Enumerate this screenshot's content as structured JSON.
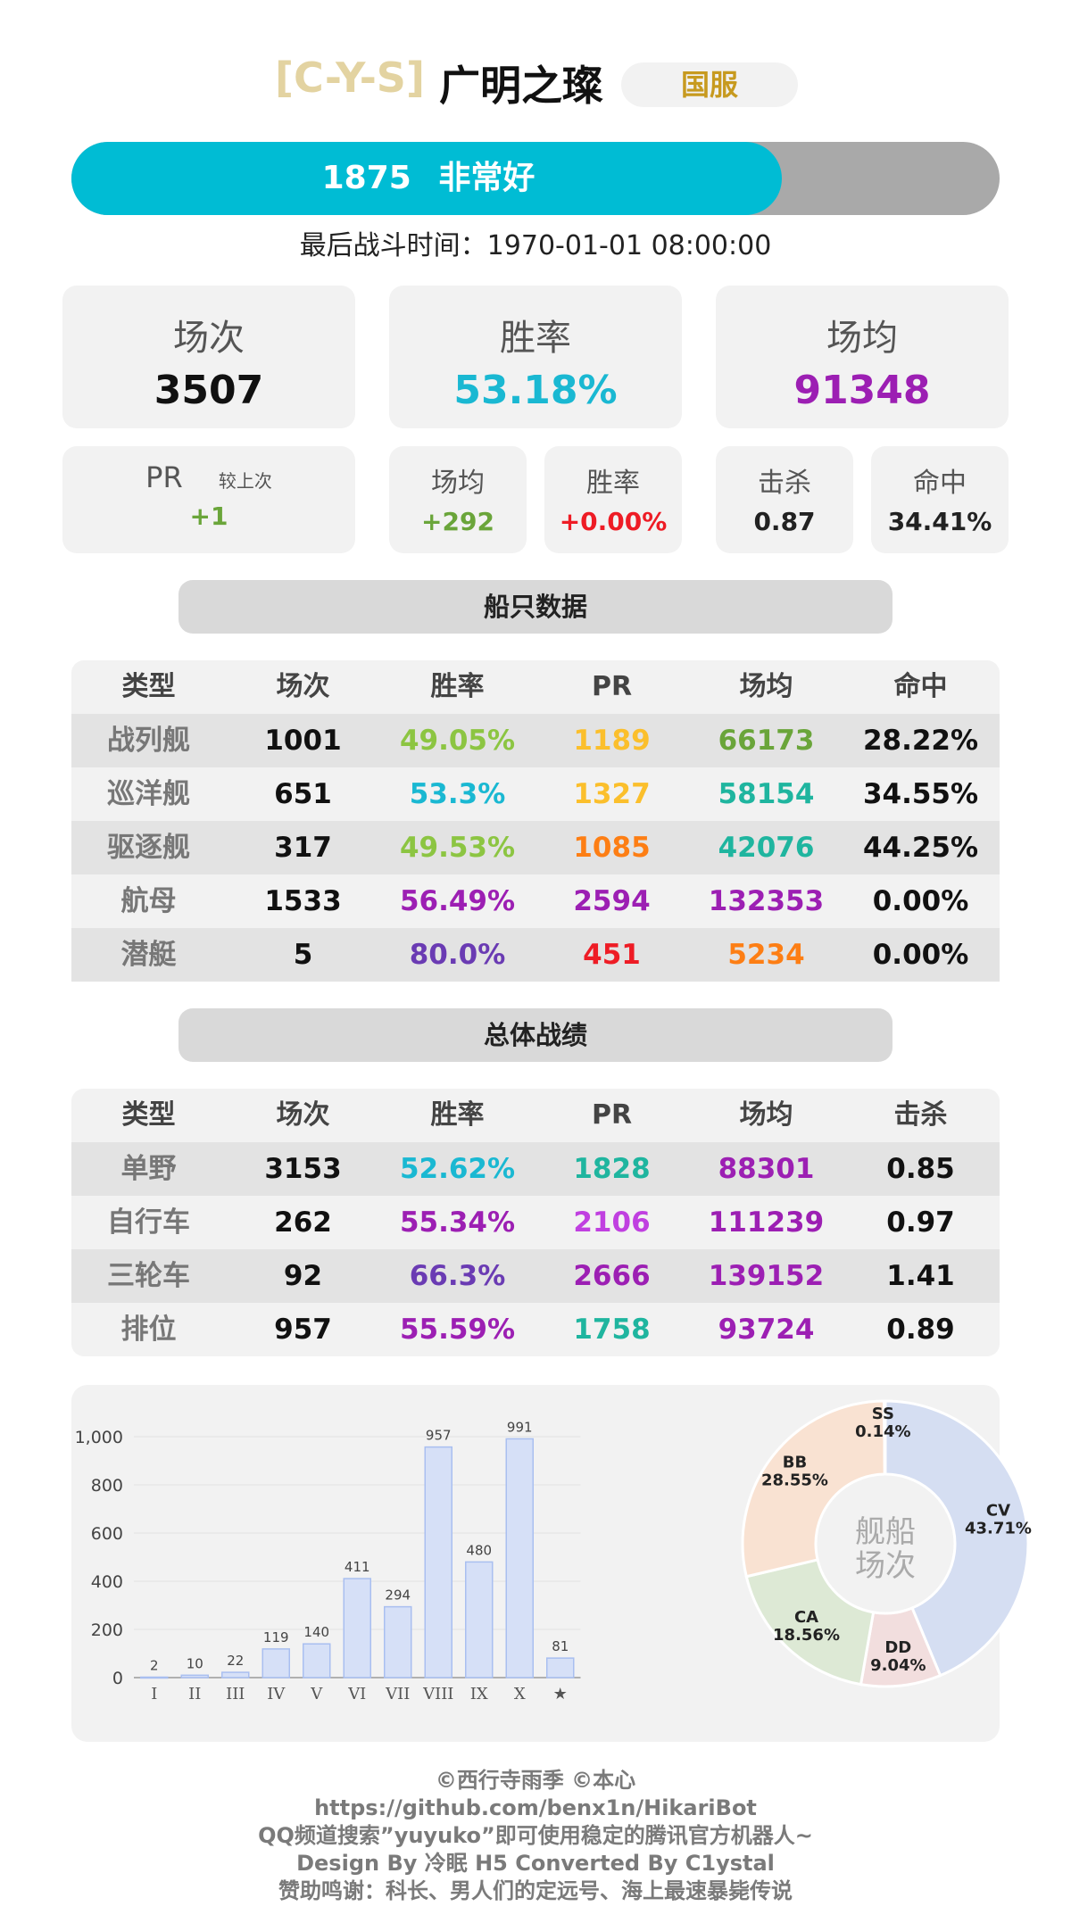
{
  "header": {
    "clan": "[C-Y-S]",
    "player": "广明之璨",
    "server": "国服"
  },
  "pr_bar": {
    "pr": "1875",
    "rating": "非常好",
    "fill_fraction": 0.765,
    "fill_color": "#00bcd4"
  },
  "last_battle": "最后战斗时间：1970-01-01 08:00:00",
  "summary": [
    {
      "label": "场次",
      "value": "3507",
      "color": "#111111"
    },
    {
      "label": "胜率",
      "value": "53.18%",
      "color": "#1ab8d2"
    },
    {
      "label": "场均",
      "value": "91348",
      "color": "#9c1fb3"
    }
  ],
  "pr_change": {
    "label": "PR",
    "sublabel": "较上次",
    "value": "+1",
    "color": "#6aa53a"
  },
  "changes": [
    {
      "label": "场均",
      "value": "+292",
      "color": "#6aa53a"
    },
    {
      "label": "胜率",
      "value": "+0.00%",
      "color": "#ee1c25"
    }
  ],
  "extras": [
    {
      "label": "击杀",
      "value": "0.87",
      "color": "#111111"
    },
    {
      "label": "命中",
      "value": "34.41%",
      "color": "#111111"
    }
  ],
  "ship_section_title": "船只数据",
  "ship_table": {
    "headers": [
      "类型",
      "场次",
      "胜率",
      "PR",
      "场均",
      "命中"
    ],
    "rows": [
      {
        "cells": [
          "战列舰",
          "1001",
          "49.05%",
          "1189",
          "66173",
          "28.22%"
        ],
        "colors": [
          "#777777",
          "#111111",
          "#8cc542",
          "#fbbf2c",
          "#6aa53a",
          "#111111"
        ]
      },
      {
        "cells": [
          "巡洋舰",
          "651",
          "53.3%",
          "1327",
          "58154",
          "34.55%"
        ],
        "colors": [
          "#777777",
          "#111111",
          "#1ab8d2",
          "#fbbf2c",
          "#1fb59f",
          "#111111"
        ]
      },
      {
        "cells": [
          "驱逐舰",
          "317",
          "49.53%",
          "1085",
          "42076",
          "44.25%"
        ],
        "colors": [
          "#777777",
          "#111111",
          "#8cc542",
          "#fd7e14",
          "#1fb59f",
          "#111111"
        ]
      },
      {
        "cells": [
          "航母",
          "1533",
          "56.49%",
          "2594",
          "132353",
          "0.00%"
        ],
        "colors": [
          "#777777",
          "#111111",
          "#9c1fb3",
          "#9c1fb3",
          "#9c1fb3",
          "#111111"
        ]
      },
      {
        "cells": [
          "潜艇",
          "5",
          "80.0%",
          "451",
          "5234",
          "0.00%"
        ],
        "colors": [
          "#777777",
          "#111111",
          "#6a3bb3",
          "#ee1c25",
          "#fd7e14",
          "#111111"
        ]
      }
    ]
  },
  "overall_section_title": "总体战绩",
  "overall_table": {
    "headers": [
      "类型",
      "场次",
      "胜率",
      "PR",
      "场均",
      "击杀"
    ],
    "rows": [
      {
        "cells": [
          "单野",
          "3153",
          "52.62%",
          "1828",
          "88301",
          "0.85"
        ],
        "colors": [
          "#777777",
          "#111111",
          "#1ab8d2",
          "#1fb59f",
          "#9c1fb3",
          "#111111"
        ]
      },
      {
        "cells": [
          "自行车",
          "262",
          "55.34%",
          "2106",
          "111239",
          "0.97"
        ],
        "colors": [
          "#777777",
          "#111111",
          "#9c1fb3",
          "#c040e0",
          "#9c1fb3",
          "#111111"
        ]
      },
      {
        "cells": [
          "三轮车",
          "92",
          "66.3%",
          "2666",
          "139152",
          "1.41"
        ],
        "colors": [
          "#777777",
          "#111111",
          "#6a3bb3",
          "#9c1fb3",
          "#9c1fb3",
          "#111111"
        ]
      },
      {
        "cells": [
          "排位",
          "957",
          "55.59%",
          "1758",
          "93724",
          "0.89"
        ],
        "colors": [
          "#777777",
          "#111111",
          "#9c1fb3",
          "#1fb59f",
          "#9c1fb3",
          "#111111"
        ]
      }
    ]
  },
  "chart_data": [
    {
      "type": "bar",
      "categories": [
        "I",
        "II",
        "III",
        "IV",
        "V",
        "VI",
        "VII",
        "VIII",
        "IX",
        "X",
        "★"
      ],
      "values": [
        2,
        10,
        22,
        119,
        140,
        411,
        294,
        957,
        480,
        991,
        81
      ],
      "yticks": [
        "0",
        "200",
        "400",
        "600",
        "800",
        "1,000"
      ],
      "ylim": [
        0,
        1000
      ],
      "grid": true
    },
    {
      "type": "pie",
      "center_label": [
        "舰船",
        "场次"
      ],
      "slices": [
        {
          "name": "CV",
          "pct": 43.71,
          "label": "43.71%",
          "color": "#d5def2"
        },
        {
          "name": "DD",
          "pct": 9.04,
          "label": "9.04%",
          "color": "#f2dede"
        },
        {
          "name": "CA",
          "pct": 18.56,
          "label": "18.56%",
          "color": "#dde9d5"
        },
        {
          "name": "BB",
          "pct": 28.55,
          "label": "28.55%",
          "color": "#f9e2d2"
        },
        {
          "name": "SS",
          "pct": 0.14,
          "label": "0.14%",
          "color": "#e8e8e8"
        }
      ]
    }
  ],
  "footer": [
    "©西行寺雨季  ©本心",
    "https://github.com/benx1n/HikariBot",
    "QQ频道搜索”yuyuko”即可使用稳定的腾讯官方机器人~",
    "Design By 冷眠 H5 Converted By C1ystal",
    "赞助鸣谢：科长、男人们的定远号、海上最速暴毙传说"
  ]
}
